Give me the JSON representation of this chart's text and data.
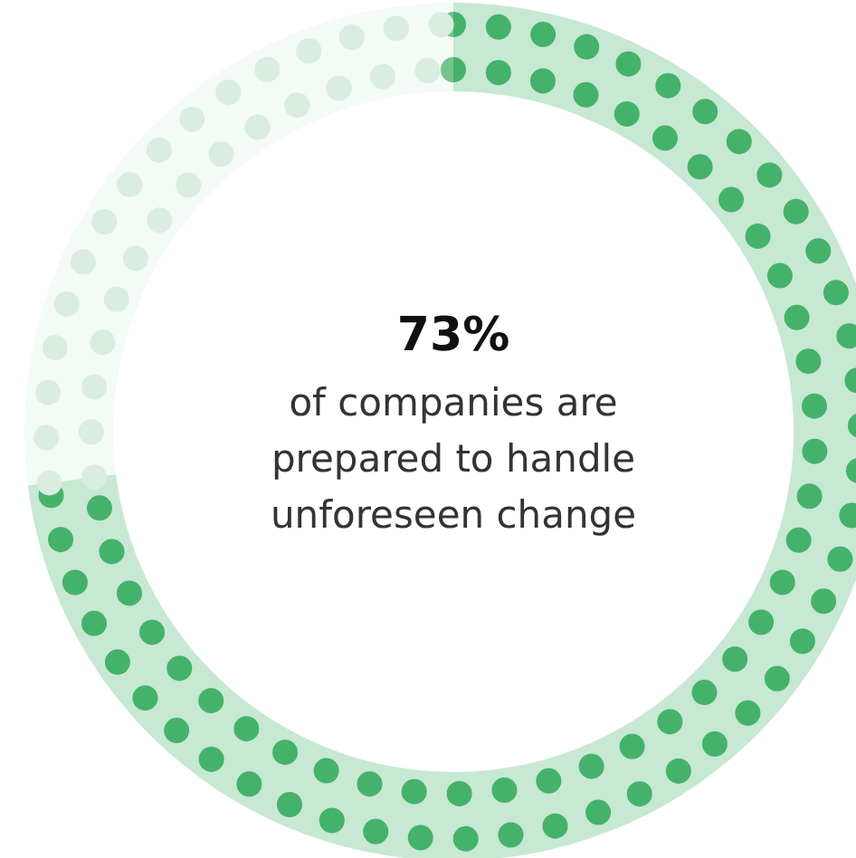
{
  "chart_data": {
    "type": "donut",
    "title": "73%",
    "subtitle": "of companies are prepared to handle unforeseen change",
    "categories": [
      null,
      null
    ],
    "values": [
      73,
      27
    ],
    "colors": [
      "#45b26b",
      "#d9ede1"
    ]
  }
}
